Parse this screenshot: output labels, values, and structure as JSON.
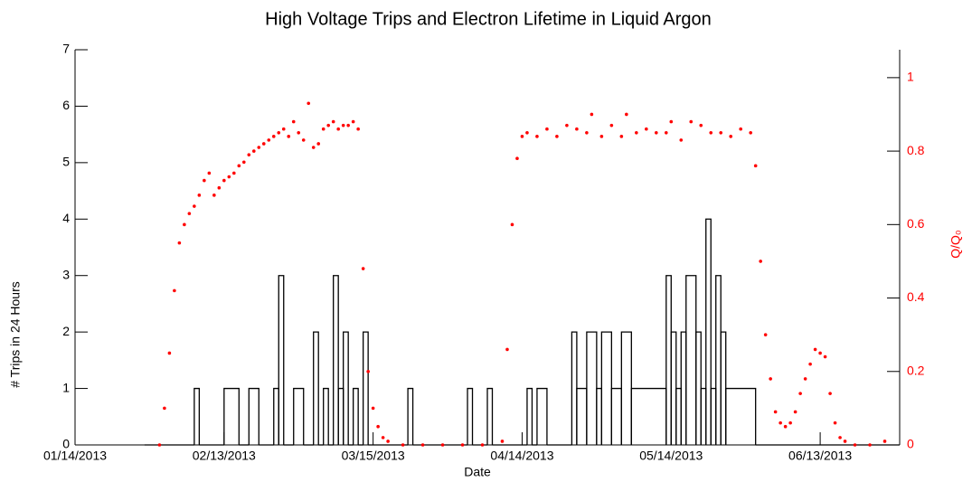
{
  "chart_data": {
    "type": "histogram-scatter",
    "title": "High Voltage Trips and Electron Lifetime in Liquid Argon",
    "xlabel": "Date",
    "ylabel": "# Trips in 24 Hours",
    "y2label": "Q/Q₀",
    "xlim": [
      "2013-01-14",
      "2013-06-29"
    ],
    "xticks": [
      {
        "value": "2013-01-14",
        "label": "01/14/2013"
      },
      {
        "value": "2013-02-13",
        "label": "02/13/2013"
      },
      {
        "value": "2013-03-15",
        "label": "03/15/2013"
      },
      {
        "value": "2013-04-14",
        "label": "04/14/2013"
      },
      {
        "value": "2013-05-14",
        "label": "05/14/2013"
      },
      {
        "value": "2013-06-13",
        "label": "06/13/2013"
      }
    ],
    "ylim": [
      0,
      7
    ],
    "yticks": [
      0,
      1,
      2,
      3,
      4,
      5,
      6,
      7
    ],
    "y2lim": [
      0,
      1.076
    ],
    "y2ticks": [
      0,
      0.2,
      0.4,
      0.6,
      0.8,
      1
    ],
    "histogram": {
      "color": "#000000",
      "bins": [
        "2013-01-28",
        "2013-02-07",
        "2013-02-08",
        "2013-02-13",
        "2013-02-16",
        "2013-02-18",
        "2013-02-20",
        "2013-02-23",
        "2013-02-24",
        "2013-02-25",
        "2013-02-27",
        "2013-03-01",
        "2013-03-03",
        "2013-03-04",
        "2013-03-05",
        "2013-03-06",
        "2013-03-07",
        "2013-03-08",
        "2013-03-09",
        "2013-03-10",
        "2013-03-11",
        "2013-03-12",
        "2013-03-13",
        "2013-03-14",
        "2013-03-22",
        "2013-03-23",
        "2013-04-03",
        "2013-04-04",
        "2013-04-07",
        "2013-04-08",
        "2013-04-15",
        "2013-04-16",
        "2013-04-17",
        "2013-04-19",
        "2013-04-24",
        "2013-04-25",
        "2013-04-27",
        "2013-04-29",
        "2013-04-30",
        "2013-05-02",
        "2013-05-04",
        "2013-05-06",
        "2013-05-13",
        "2013-05-14",
        "2013-05-15",
        "2013-05-16",
        "2013-05-17",
        "2013-05-19",
        "2013-05-20",
        "2013-05-21",
        "2013-05-22",
        "2013-05-23",
        "2013-05-24",
        "2013-05-25",
        "2013-05-31",
        "2013-06-29"
      ],
      "counts": [
        0,
        1,
        0,
        1,
        0,
        1,
        0,
        1,
        3,
        0,
        1,
        0,
        2,
        0,
        1,
        0,
        3,
        1,
        2,
        0,
        1,
        0,
        2,
        0,
        1,
        0,
        1,
        0,
        1,
        0,
        1,
        0,
        1,
        0,
        2,
        1,
        2,
        1,
        2,
        1,
        2,
        1,
        3,
        2,
        1,
        2,
        3,
        2,
        1,
        4,
        1,
        3,
        2,
        1,
        0
      ]
    },
    "scatter": {
      "color": "#ff0000",
      "axis": "y2",
      "x": [
        "2013-01-31",
        "2013-02-01",
        "2013-02-02",
        "2013-02-03",
        "2013-02-04",
        "2013-02-05",
        "2013-02-06",
        "2013-02-07",
        "2013-02-08",
        "2013-02-09",
        "2013-02-10",
        "2013-02-11",
        "2013-02-12",
        "2013-02-13",
        "2013-02-14",
        "2013-02-15",
        "2013-02-16",
        "2013-02-17",
        "2013-02-18",
        "2013-02-19",
        "2013-02-20",
        "2013-02-21",
        "2013-02-22",
        "2013-02-23",
        "2013-02-24",
        "2013-02-25",
        "2013-02-26",
        "2013-02-27",
        "2013-02-28",
        "2013-03-01",
        "2013-03-02",
        "2013-03-03",
        "2013-03-04",
        "2013-03-05",
        "2013-03-06",
        "2013-03-07",
        "2013-03-08",
        "2013-03-09",
        "2013-03-10",
        "2013-03-11",
        "2013-03-12",
        "2013-03-13",
        "2013-03-14",
        "2013-03-15",
        "2013-03-16",
        "2013-03-17",
        "2013-03-18",
        "2013-03-21",
        "2013-03-25",
        "2013-03-29",
        "2013-04-02",
        "2013-04-06",
        "2013-04-10",
        "2013-04-11",
        "2013-04-12",
        "2013-04-13",
        "2013-04-14",
        "2013-04-15",
        "2013-04-17",
        "2013-04-19",
        "2013-04-21",
        "2013-04-23",
        "2013-04-25",
        "2013-04-27",
        "2013-04-28",
        "2013-04-30",
        "2013-05-02",
        "2013-05-04",
        "2013-05-05",
        "2013-05-07",
        "2013-05-09",
        "2013-05-11",
        "2013-05-13",
        "2013-05-14",
        "2013-05-16",
        "2013-05-18",
        "2013-05-20",
        "2013-05-22",
        "2013-05-24",
        "2013-05-26",
        "2013-05-28",
        "2013-05-30",
        "2013-05-31",
        "2013-06-01",
        "2013-06-02",
        "2013-06-03",
        "2013-06-04",
        "2013-06-05",
        "2013-06-06",
        "2013-06-07",
        "2013-06-08",
        "2013-06-09",
        "2013-06-10",
        "2013-06-11",
        "2013-06-12",
        "2013-06-13",
        "2013-06-14",
        "2013-06-15",
        "2013-06-16",
        "2013-06-17",
        "2013-06-18",
        "2013-06-20",
        "2013-06-23",
        "2013-06-26"
      ],
      "values": [
        0,
        0.1,
        0.25,
        0.42,
        0.55,
        0.6,
        0.63,
        0.65,
        0.68,
        0.72,
        0.74,
        0.68,
        0.7,
        0.72,
        0.73,
        0.74,
        0.76,
        0.77,
        0.79,
        0.8,
        0.81,
        0.82,
        0.83,
        0.84,
        0.85,
        0.86,
        0.84,
        0.88,
        0.85,
        0.83,
        0.93,
        0.81,
        0.82,
        0.86,
        0.87,
        0.88,
        0.86,
        0.87,
        0.87,
        0.88,
        0.86,
        0.48,
        0.2,
        0.1,
        0.05,
        0.02,
        0.01,
        0,
        0,
        0,
        0,
        0,
        0.01,
        0.26,
        0.6,
        0.78,
        0.84,
        0.85,
        0.84,
        0.86,
        0.84,
        0.87,
        0.86,
        0.85,
        0.9,
        0.84,
        0.87,
        0.84,
        0.9,
        0.85,
        0.86,
        0.85,
        0.85,
        0.88,
        0.83,
        0.88,
        0.87,
        0.85,
        0.85,
        0.84,
        0.86,
        0.85,
        0.76,
        0.5,
        0.3,
        0.18,
        0.09,
        0.06,
        0.05,
        0.06,
        0.09,
        0.14,
        0.18,
        0.22,
        0.26,
        0.25,
        0.24,
        0.14,
        0.06,
        0.02,
        0.01,
        0,
        0,
        0.01
      ]
    }
  }
}
